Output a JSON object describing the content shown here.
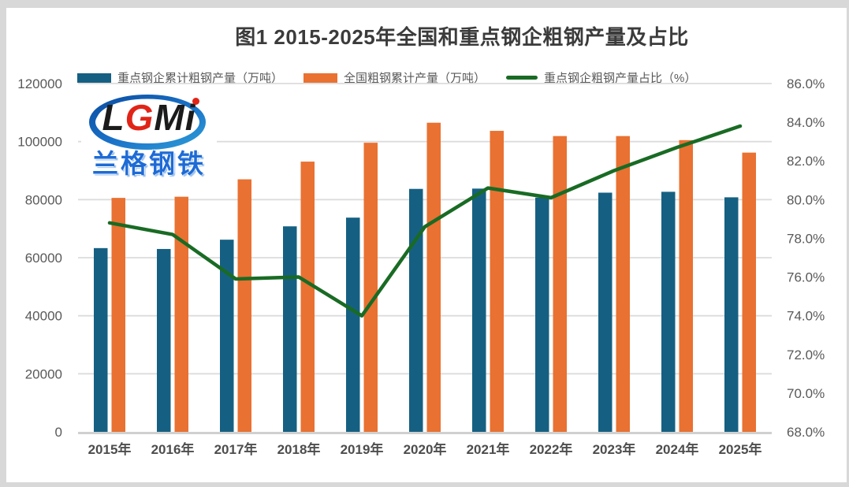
{
  "title": "图1 2015-2025年全国和重点钢企粗钢产量及占比",
  "logo": {
    "letters": [
      "L",
      "G",
      "M",
      "i"
    ],
    "chinese": "兰格钢铁"
  },
  "legend": [
    {
      "label": "重点钢企累计粗钢产量（万吨）",
      "color": "#156082",
      "marker": "bar"
    },
    {
      "label": "全国粗钢累计产量（万吨）",
      "color": "#E97132",
      "marker": "bar"
    },
    {
      "label": "重点钢企粗钢产量占比（%）",
      "color": "#196B24",
      "marker": "line"
    }
  ],
  "colors": {
    "key_enterprises_bar": "#156082",
    "national_bar": "#E97132",
    "ratio_line": "#196B24",
    "gridline": "#dcdcdc",
    "axis_line": "#d0d0d0",
    "tick_text": "#595959",
    "category_text": "#4d4d4d",
    "panel_border": "#d8d8d8"
  },
  "chart_data": {
    "type": "bar+line combo",
    "title": "图1 2015-2025年全国和重点钢企粗钢产量及占比",
    "categories": [
      "2015年",
      "2016年",
      "2017年",
      "2018年",
      "2019年",
      "2020年",
      "2021年",
      "2022年",
      "2023年",
      "2024年",
      "2025年"
    ],
    "series": [
      {
        "name": "重点钢企累计粗钢产量（万吨）",
        "type": "bar",
        "axis": "left",
        "color": "#156082",
        "values": [
          63300,
          63000,
          66200,
          70800,
          73800,
          83700,
          83800,
          80700,
          82400,
          82700,
          80800
        ]
      },
      {
        "name": "全国粗钢累计产量（万吨）",
        "type": "bar",
        "axis": "left",
        "color": "#E97132",
        "values": [
          80600,
          81000,
          87000,
          93100,
          99600,
          106500,
          103700,
          101900,
          101900,
          100500,
          96200
        ]
      },
      {
        "name": "重点钢企粗钢产量占比（%）",
        "type": "line",
        "axis": "right",
        "color": "#196B24",
        "values": [
          78.8,
          78.2,
          75.9,
          76.0,
          74.0,
          78.6,
          80.6,
          80.1,
          81.5,
          82.7,
          83.8
        ]
      }
    ],
    "left_axis": {
      "min": 0,
      "max": 120000,
      "step": 20000,
      "tick_labels": [
        "0",
        "20000",
        "40000",
        "60000",
        "80000",
        "100000",
        "120000"
      ]
    },
    "right_axis": {
      "min": 68,
      "max": 86,
      "step": 2,
      "tick_labels": [
        "68.0%",
        "70.0%",
        "72.0%",
        "74.0%",
        "76.0%",
        "78.0%",
        "80.0%",
        "82.0%",
        "84.0%",
        "86.0%"
      ]
    },
    "grid": true,
    "legend_position": "top"
  }
}
